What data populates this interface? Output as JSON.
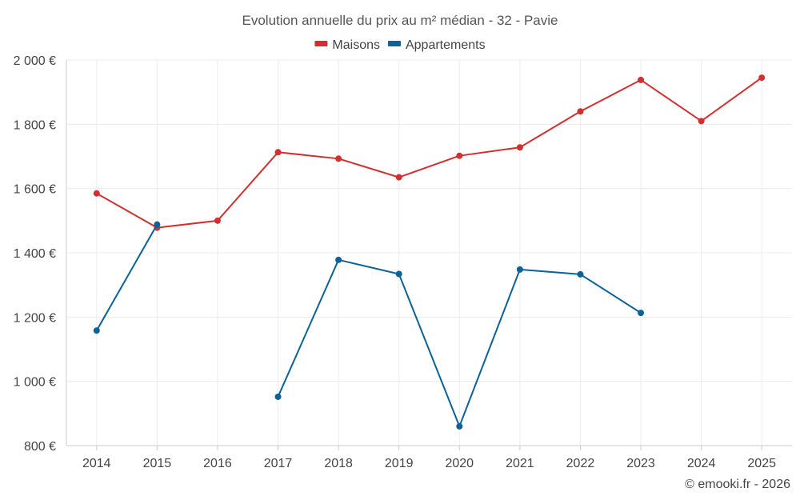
{
  "chart_data": {
    "type": "line",
    "title": "Evolution annuelle du prix au m² médian - 32 - Pavie",
    "categories": [
      "2014",
      "2015",
      "2016",
      "2017",
      "2018",
      "2019",
      "2020",
      "2021",
      "2022",
      "2023",
      "2024",
      "2025"
    ],
    "ylim": [
      800,
      2000
    ],
    "yticks": [
      800,
      1000,
      1200,
      1400,
      1600,
      1800,
      2000
    ],
    "ytick_labels": [
      "800 €",
      "1 000 €",
      "1 200 €",
      "1 400 €",
      "1 600 €",
      "1 800 €",
      "2 000 €"
    ],
    "series": [
      {
        "name": "Maisons",
        "color": "#d32f2f",
        "values": [
          1585,
          1478,
          1500,
          1713,
          1693,
          1635,
          1702,
          1728,
          1840,
          1938,
          1810,
          1945
        ]
      },
      {
        "name": "Appartements",
        "color": "#0a6296",
        "values": [
          1158,
          1488,
          null,
          952,
          1378,
          1334,
          860,
          1348,
          1333,
          1213,
          null,
          null
        ]
      }
    ],
    "legend_position": "top-center",
    "grid": true
  },
  "credit": "© emooki.fr - 2026"
}
